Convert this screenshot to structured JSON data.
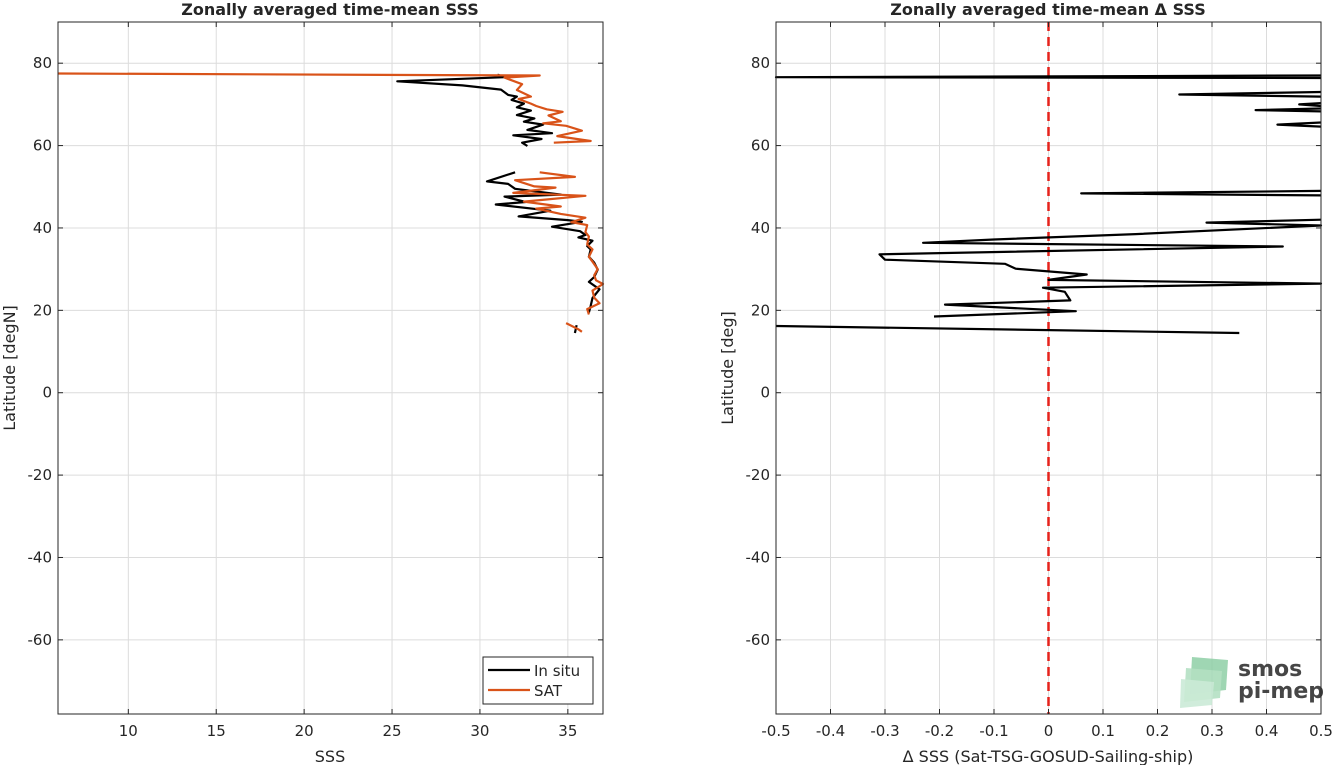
{
  "chart_data": [
    {
      "type": "line",
      "title": "Zonally averaged time-mean SSS",
      "xlabel": "SSS",
      "ylabel": "Latitude [degN]",
      "xlim": [
        6,
        37
      ],
      "ylim": [
        -78,
        90
      ],
      "xticks": [
        10,
        15,
        20,
        25,
        30,
        35
      ],
      "yticks": [
        -60,
        -40,
        -20,
        0,
        20,
        40,
        60,
        80
      ],
      "grid": true,
      "legend": {
        "placement": "bottom-right",
        "entries": [
          "In situ",
          "SAT"
        ]
      },
      "series": [
        {
          "name": "In situ",
          "color": "#000000",
          "segments": [
            [
              [
                31.0,
                77.2
              ],
              [
                31.4,
                76.6
              ],
              [
                25.3,
                75.6
              ],
              [
                29.0,
                74.6
              ],
              [
                31.2,
                73.6
              ],
              [
                31.6,
                72.3
              ],
              [
                32.1,
                71.9
              ],
              [
                31.8,
                71.1
              ],
              [
                32.5,
                70.2
              ],
              [
                32.1,
                69.3
              ],
              [
                32.9,
                68.5
              ],
              [
                32.1,
                67.4
              ],
              [
                33.1,
                66.6
              ],
              [
                32.5,
                65.8
              ],
              [
                33.6,
                65.1
              ],
              [
                32.7,
                63.8
              ],
              [
                34.1,
                63.0
              ],
              [
                31.9,
                62.5
              ],
              [
                33.5,
                61.6
              ],
              [
                32.4,
                60.7
              ],
              [
                32.7,
                59.9
              ]
            ],
            [
              [
                32.0,
                53.5
              ],
              [
                30.4,
                51.3
              ],
              [
                31.6,
                50.7
              ],
              [
                32.0,
                49.5
              ],
              [
                34.6,
                48.1
              ],
              [
                31.4,
                47.6
              ],
              [
                32.6,
                46.3
              ],
              [
                30.9,
                45.7
              ],
              [
                34.0,
                44.2
              ],
              [
                32.2,
                42.8
              ],
              [
                35.0,
                41.9
              ],
              [
                35.8,
                41.5
              ],
              [
                34.1,
                40.3
              ],
              [
                35.7,
                39.2
              ],
              [
                36.0,
                38.3
              ],
              [
                35.6,
                37.7
              ],
              [
                36.4,
                36.9
              ],
              [
                36.1,
                35.6
              ],
              [
                36.3,
                34.8
              ],
              [
                36.2,
                33.0
              ],
              [
                36.5,
                31.6
              ],
              [
                36.7,
                29.9
              ],
              [
                36.5,
                28.1
              ],
              [
                36.2,
                26.9
              ],
              [
                36.8,
                25.1
              ],
              [
                36.4,
                23.0
              ],
              [
                36.3,
                21.1
              ],
              [
                36.2,
                19.5
              ]
            ],
            [
              [
                35.5,
                16.4
              ],
              [
                35.4,
                14.5
              ]
            ]
          ]
        },
        {
          "name": "SAT",
          "color": "#d95319",
          "segments": [
            [
              [
                6.0,
                77.5
              ],
              [
                33.4,
                77.0
              ],
              [
                31.4,
                76.5
              ],
              [
                32.4,
                74.9
              ],
              [
                32.1,
                73.5
              ],
              [
                32.9,
                71.9
              ],
              [
                32.2,
                71.3
              ],
              [
                32.9,
                70.2
              ],
              [
                33.2,
                69.6
              ],
              [
                33.8,
                68.8
              ],
              [
                34.7,
                68.2
              ],
              [
                33.9,
                67.3
              ],
              [
                34.6,
                65.9
              ],
              [
                33.6,
                65.4
              ],
              [
                34.9,
                64.8
              ],
              [
                35.8,
                63.6
              ],
              [
                34.4,
                62.3
              ],
              [
                36.3,
                61.1
              ],
              [
                34.2,
                60.7
              ]
            ],
            [
              [
                33.4,
                53.5
              ],
              [
                35.4,
                52.4
              ],
              [
                32.0,
                51.6
              ],
              [
                33.1,
                50.1
              ],
              [
                34.3,
                49.8
              ],
              [
                31.9,
                48.5
              ],
              [
                36.0,
                47.8
              ],
              [
                32.5,
                46.4
              ],
              [
                34.6,
                45.2
              ],
              [
                33.2,
                44.7
              ],
              [
                34.6,
                43.4
              ],
              [
                36.0,
                42.5
              ],
              [
                35.2,
                41.4
              ],
              [
                36.1,
                40.7
              ],
              [
                36.0,
                39.0
              ],
              [
                36.2,
                37.9
              ],
              [
                36.1,
                36.0
              ],
              [
                36.4,
                34.8
              ],
              [
                36.2,
                33.0
              ],
              [
                36.4,
                31.8
              ],
              [
                36.7,
                30.0
              ],
              [
                36.5,
                28.5
              ],
              [
                36.6,
                27.3
              ],
              [
                37.0,
                26.4
              ],
              [
                36.4,
                24.8
              ],
              [
                36.5,
                23.1
              ],
              [
                36.8,
                21.7
              ],
              [
                36.1,
                20.3
              ],
              [
                36.2,
                19.0
              ]
            ],
            [
              [
                34.9,
                16.9
              ],
              [
                35.6,
                15.4
              ],
              [
                35.8,
                14.8
              ]
            ]
          ]
        }
      ]
    },
    {
      "type": "line",
      "title": "Zonally averaged time-mean Δ SSS",
      "xlabel": "Δ SSS (Sat-TSG-GOSUD-Sailing-ship)",
      "ylabel": "Latitude [deg]",
      "xlim": [
        -0.5,
        0.5
      ],
      "ylim": [
        -78,
        90
      ],
      "xticks": [
        -0.5,
        -0.4,
        -0.3,
        -0.2,
        -0.1,
        0,
        0.1,
        0.2,
        0.3,
        0.4,
        0.5
      ],
      "yticks": [
        -60,
        -40,
        -20,
        0,
        20,
        40,
        60,
        80
      ],
      "grid": true,
      "reference_line": {
        "x": 0,
        "color": "#e6221b",
        "style": "dashed"
      },
      "series": [
        {
          "color": "#000000",
          "segments": [
            [
              [
                0.5,
                77.0
              ],
              [
                -0.5,
                76.6
              ],
              [
                0.5,
                76.4
              ]
            ],
            [
              [
                0.5,
                73.0
              ],
              [
                0.24,
                72.4
              ],
              [
                0.5,
                71.9
              ]
            ],
            [
              [
                0.5,
                70.3
              ],
              [
                0.46,
                70.0
              ],
              [
                0.5,
                69.6
              ]
            ],
            [
              [
                0.5,
                69.0
              ],
              [
                0.38,
                68.6
              ],
              [
                0.5,
                68.3
              ]
            ],
            [
              [
                0.5,
                65.6
              ],
              [
                0.42,
                65.1
              ],
              [
                0.5,
                64.6
              ]
            ],
            [
              [
                0.5,
                49.0
              ],
              [
                0.06,
                48.4
              ],
              [
                0.5,
                47.9
              ]
            ],
            [
              [
                0.5,
                42.0
              ],
              [
                0.29,
                41.3
              ],
              [
                0.5,
                40.6
              ],
              [
                0.16,
                38.5
              ],
              [
                -0.1,
                37.2
              ],
              [
                -0.23,
                36.4
              ],
              [
                0.43,
                35.5
              ],
              [
                -0.31,
                33.6
              ],
              [
                -0.3,
                32.3
              ],
              [
                -0.08,
                31.3
              ],
              [
                -0.06,
                30.1
              ],
              [
                0.07,
                28.7
              ],
              [
                -0.0,
                27.4
              ],
              [
                0.5,
                26.5
              ],
              [
                -0.01,
                25.5
              ],
              [
                0.03,
                24.5
              ],
              [
                0.04,
                22.4
              ],
              [
                -0.19,
                21.4
              ],
              [
                0.05,
                19.8
              ],
              [
                -0.21,
                18.5
              ]
            ],
            [
              [
                -0.5,
                16.2
              ],
              [
                0.35,
                14.5
              ]
            ]
          ]
        }
      ]
    }
  ],
  "watermark": {
    "line1": "smos",
    "line2": "pi-mep",
    "color": "#7fbf98"
  }
}
